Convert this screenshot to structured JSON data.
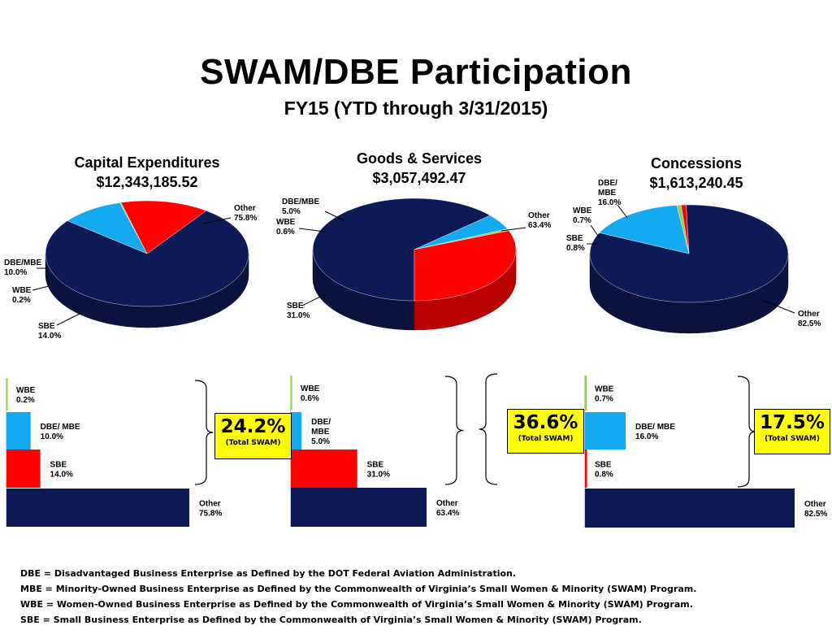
{
  "title": "SWAM/DBE Participation",
  "subtitle": "FY15 (YTD through 3/31/2015)",
  "colors": {
    "Other": "#0d1a55",
    "DBE/MBE": "#14aaf0",
    "WBE": "#92d050",
    "SBE": "#ff0000",
    "total_box": "#ffff00"
  },
  "chart_data": [
    {
      "type": "pie",
      "title": "Capital Expenditures",
      "subtitle": "$12,343,185.52",
      "slices": [
        {
          "label": "Other",
          "value": 75.8,
          "display": "75.8%"
        },
        {
          "label": "DBE/MBE",
          "value": 10.0,
          "display": "10.0%"
        },
        {
          "label": "WBE",
          "value": 0.2,
          "display": "0.2%"
        },
        {
          "label": "SBE",
          "value": 14.0,
          "display": "14.0%"
        }
      ]
    },
    {
      "type": "pie",
      "title": "Goods & Services",
      "subtitle": "$3,057,492.47",
      "slices": [
        {
          "label": "Other",
          "value": 63.4,
          "display": "63.4%"
        },
        {
          "label": "DBE/MBE",
          "value": 5.0,
          "display": "5.0%"
        },
        {
          "label": "WBE",
          "value": 0.6,
          "display": "0.6%"
        },
        {
          "label": "SBE",
          "value": 31.0,
          "display": "31.0%"
        }
      ]
    },
    {
      "type": "pie",
      "title": "Concessions",
      "subtitle": "$1,613,240.45",
      "slices": [
        {
          "label": "Other",
          "value": 82.5,
          "display": "82.5%"
        },
        {
          "label": "DBE/MBE",
          "value": 16.0,
          "display": "16.0%"
        },
        {
          "label": "WBE",
          "value": 0.7,
          "display": "0.7%"
        },
        {
          "label": "SBE",
          "value": 0.8,
          "display": "0.8%"
        }
      ]
    },
    {
      "type": "bar",
      "orientation": "horizontal",
      "categories": [
        "WBE",
        "DBE/ MBE",
        "SBE",
        "Other"
      ],
      "values": [
        0.2,
        10.0,
        14.0,
        75.8
      ],
      "labels": [
        "0.2%",
        "10.0%",
        "14.0%",
        "75.8%"
      ],
      "total": {
        "value": "24.2%",
        "caption": "(Total SWAM)"
      }
    },
    {
      "type": "bar",
      "orientation": "horizontal",
      "categories": [
        "WBE",
        "DBE/ MBE",
        "SBE",
        "Other"
      ],
      "values": [
        0.6,
        5.0,
        31.0,
        63.4
      ],
      "labels": [
        "0.6%",
        "5.0%",
        "31.0%",
        "63.4%"
      ],
      "total": {
        "value": "36.6%",
        "caption": "(Total SWAM)"
      }
    },
    {
      "type": "bar",
      "orientation": "horizontal",
      "categories": [
        "WBE",
        "DBE/ MBE",
        "SBE",
        "Other"
      ],
      "values": [
        0.7,
        16.0,
        0.8,
        82.5
      ],
      "labels": [
        "0.7%",
        "16.0%",
        "0.8%",
        "82.5%"
      ],
      "total": {
        "value": "17.5%",
        "caption": "(Total SWAM)"
      }
    }
  ],
  "footnotes": [
    "DBE = Disadvantaged Business Enterprise as Defined by the DOT Federal Aviation Administration.",
    "MBE = Minority-Owned Business Enterprise as Defined by the Commonwealth of Virginia’s Small Women & Minority (SWAM) Program.",
    "WBE = Women-Owned Business Enterprise as Defined by the Commonwealth of Virginia’s Small Women & Minority (SWAM) Program.",
    "SBE = Small Business Enterprise as Defined by the Commonwealth of Virginia’s Small Women & Minority (SWAM) Program."
  ]
}
